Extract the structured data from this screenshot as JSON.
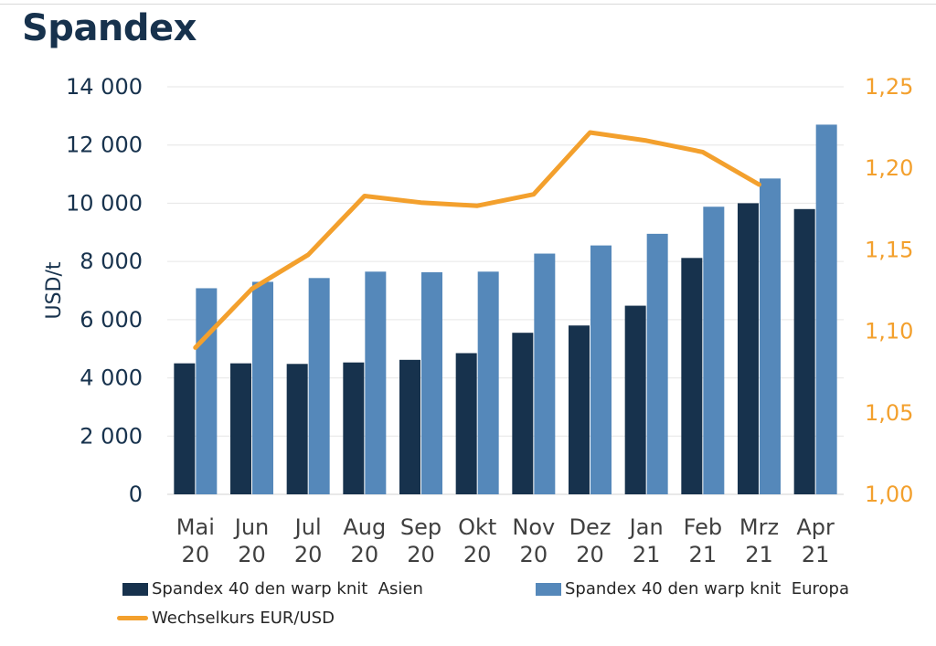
{
  "title": "Spandex",
  "colors": {
    "asien": "#17324d",
    "europa": "#5588ba",
    "fx": "#f3a02d",
    "axis_left_text": "#17324d",
    "axis_right_text": "#f3a02d",
    "grid": "#e6e6e6"
  },
  "chart_data": {
    "type": "bar",
    "categories": [
      [
        "Mai",
        "20"
      ],
      [
        "Jun",
        "20"
      ],
      [
        "Jul",
        "20"
      ],
      [
        "Aug",
        "20"
      ],
      [
        "Sep",
        "20"
      ],
      [
        "Okt",
        "20"
      ],
      [
        "Nov",
        "20"
      ],
      [
        "Dez",
        "20"
      ],
      [
        "Jan",
        "21"
      ],
      [
        "Feb",
        "21"
      ],
      [
        "Mrz",
        "21"
      ],
      [
        "Apr",
        "21"
      ]
    ],
    "series": [
      {
        "name": "Spandex 40 den warp knit  Asien",
        "axis": "left",
        "type": "bar",
        "values": [
          4500,
          4500,
          4480,
          4530,
          4620,
          4850,
          5550,
          5800,
          6480,
          8120,
          10000,
          9800
        ]
      },
      {
        "name": "Spandex 40 den warp knit  Europa",
        "axis": "left",
        "type": "bar",
        "values": [
          7080,
          7300,
          7430,
          7650,
          7630,
          7650,
          8270,
          8550,
          8950,
          9880,
          10850,
          12700
        ]
      },
      {
        "name": "Wechselkurs EUR/USD",
        "axis": "right",
        "type": "line",
        "values": [
          1.09,
          1.126,
          1.147,
          1.183,
          1.179,
          1.177,
          1.184,
          1.222,
          1.217,
          1.21,
          1.19,
          null
        ]
      }
    ],
    "ylabel": "USD/t",
    "ylim": [
      0,
      14000
    ],
    "yticks": [
      "0",
      "2 000",
      "4 000",
      "6 000",
      "8 000",
      "10 000",
      "12 000",
      "14 000"
    ],
    "y2lim": [
      1.0,
      1.25
    ],
    "y2ticks": [
      "1,00",
      "1,05",
      "1,10",
      "1,15",
      "1,20",
      "1,25"
    ],
    "grid": true,
    "legend_position": "bottom"
  }
}
